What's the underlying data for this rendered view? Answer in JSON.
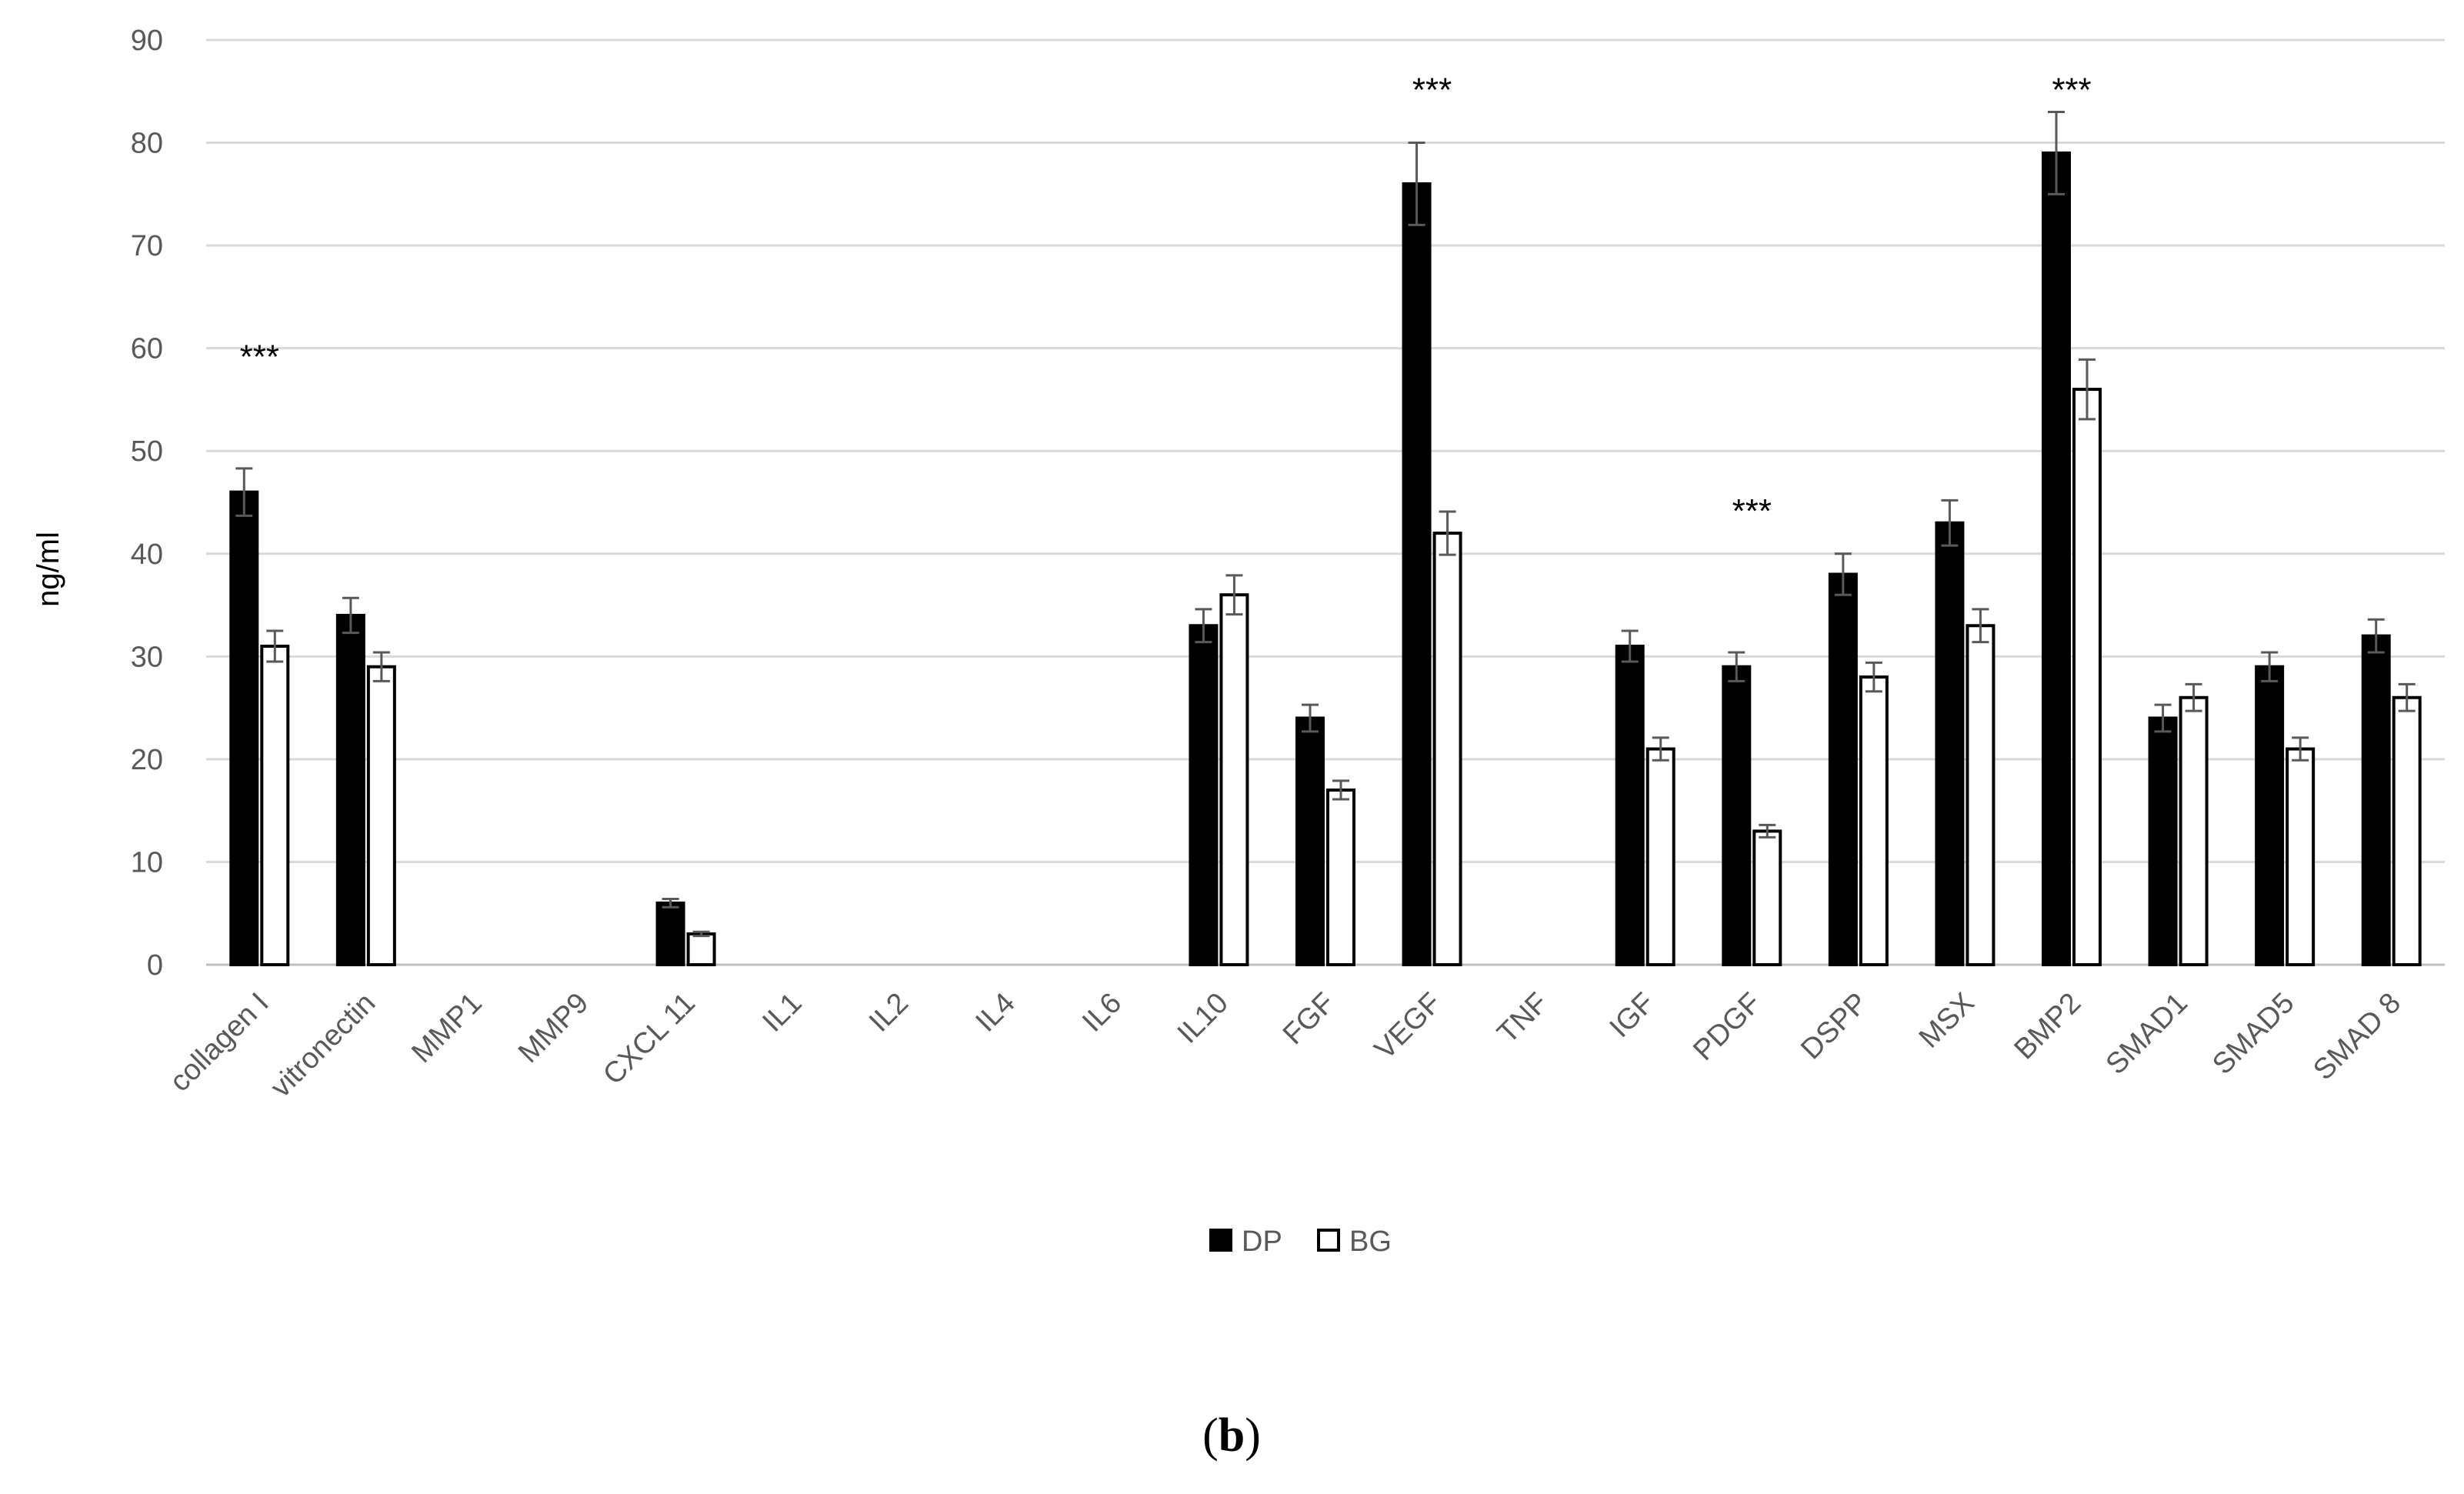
{
  "chart_data": {
    "type": "bar",
    "ylabel": "ng/ml",
    "ylim": [
      0,
      90
    ],
    "yticks": [
      0,
      10,
      20,
      30,
      40,
      50,
      60,
      70,
      80,
      90
    ],
    "grid": true,
    "legend_position": "bottom",
    "categories": [
      "collagen I",
      "vitronectin",
      "MMP1",
      "MMP9",
      "CXCL 11",
      "IL1",
      "IL2",
      "IL4",
      "IL6",
      "IL10",
      "FGF",
      "VEGF",
      "TNF",
      "IGF",
      "PDGF",
      "DSPP",
      "MSX",
      "BMP2",
      "SMAD1",
      "SMAD5",
      "SMAD 8"
    ],
    "series": [
      {
        "name": "DP",
        "color": "#000000",
        "values": [
          46,
          34,
          0,
          0,
          6,
          0,
          0,
          0,
          0,
          33,
          24,
          76,
          0,
          31,
          29,
          38,
          43,
          79,
          24,
          29,
          32
        ],
        "errors": [
          2.3,
          1.7,
          0,
          0,
          0.4,
          0,
          0,
          0,
          0,
          1.6,
          1.3,
          4.0,
          0,
          1.5,
          1.4,
          2.0,
          2.2,
          4.0,
          1.3,
          1.4,
          1.6
        ]
      },
      {
        "name": "BG",
        "color": "#ffffff",
        "values": [
          31,
          29,
          0,
          0,
          3,
          0,
          0,
          0,
          0,
          36,
          17,
          42,
          0,
          21,
          13,
          28,
          33,
          56,
          26,
          21,
          26
        ],
        "errors": [
          1.5,
          1.4,
          0,
          0,
          0.2,
          0,
          0,
          0,
          0,
          1.9,
          0.9,
          2.1,
          0,
          1.1,
          0.6,
          1.4,
          1.6,
          2.9,
          1.3,
          1.1,
          1.3
        ]
      }
    ],
    "annotations": [
      {
        "category": "collagen I",
        "text": "***",
        "y": 60
      },
      {
        "category": "VEGF",
        "text": "***",
        "y": 86
      },
      {
        "category": "PDGF",
        "text": "***",
        "y": 45
      },
      {
        "category": "BMP2",
        "text": "***",
        "y": 86
      }
    ]
  },
  "panel_label": {
    "open": "(",
    "letter": "b",
    "close": ")"
  }
}
